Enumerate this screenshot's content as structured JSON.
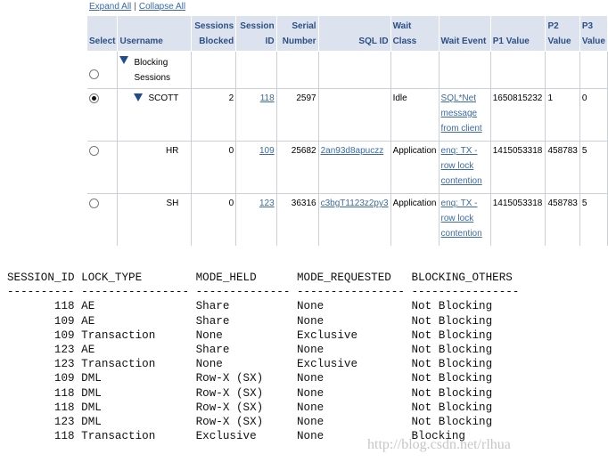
{
  "toolbar": {
    "expand_all": "Expand All",
    "collapse_all": "Collapse All",
    "separator": "|"
  },
  "grid": {
    "columns": [
      "Select",
      "Username",
      "Sessions Blocked",
      "Session ID",
      "Serial Number",
      "SQL ID",
      "Wait Class",
      "Wait Event",
      "P1 Value",
      "P2 Value",
      "P3 Value"
    ],
    "root_label": "Blocking Sessions",
    "rows": [
      {
        "selected": true,
        "username": "SCOTT",
        "sessions_blocked": "2",
        "session_id": "118",
        "serial": "2597",
        "sql_id": "",
        "wait_class": "Idle",
        "wait_event": "SQL*Net message from client",
        "p1": "1650815232",
        "p2": "1",
        "p3": "0"
      },
      {
        "selected": false,
        "username": "HR",
        "sessions_blocked": "0",
        "session_id": "109",
        "serial": "25682",
        "sql_id": "2an93d8apuczz",
        "wait_class": "Application",
        "wait_event": "enq: TX - row lock contention",
        "p1": "1415053318",
        "p2": "458783",
        "p3": "5"
      },
      {
        "selected": false,
        "username": "SH",
        "sessions_blocked": "0",
        "session_id": "123",
        "serial": "36316",
        "sql_id": "c3bgT1123z2py3",
        "wait_class": "Application",
        "wait_event": "enq: TX - row lock contention",
        "p1": "1415053318",
        "p2": "458783",
        "p3": "5"
      }
    ]
  },
  "lock_output": {
    "headers": [
      "SESSION_ID",
      "LOCK_TYPE",
      "MODE_HELD",
      "MODE_REQUESTED",
      "BLOCKING_OTHERS"
    ],
    "rows": [
      [
        "118",
        "AE",
        "Share",
        "None",
        "Not Blocking"
      ],
      [
        "109",
        "AE",
        "Share",
        "None",
        "Not Blocking"
      ],
      [
        "109",
        "Transaction",
        "None",
        "Exclusive",
        "Not Blocking"
      ],
      [
        "123",
        "AE",
        "Share",
        "None",
        "Not Blocking"
      ],
      [
        "123",
        "Transaction",
        "None",
        "Exclusive",
        "Not Blocking"
      ],
      [
        "109",
        "DML",
        "Row-X (SX)",
        "None",
        "Not Blocking"
      ],
      [
        "118",
        "DML",
        "Row-X (SX)",
        "None",
        "Not Blocking"
      ],
      [
        "118",
        "DML",
        "Row-X (SX)",
        "None",
        "Not Blocking"
      ],
      [
        "123",
        "DML",
        "Row-X (SX)",
        "None",
        "Not Blocking"
      ],
      [
        "118",
        "Transaction",
        "Exclusive",
        "None",
        "Blocking"
      ]
    ]
  },
  "watermark": "http://blog.csdn.net/rlhua"
}
